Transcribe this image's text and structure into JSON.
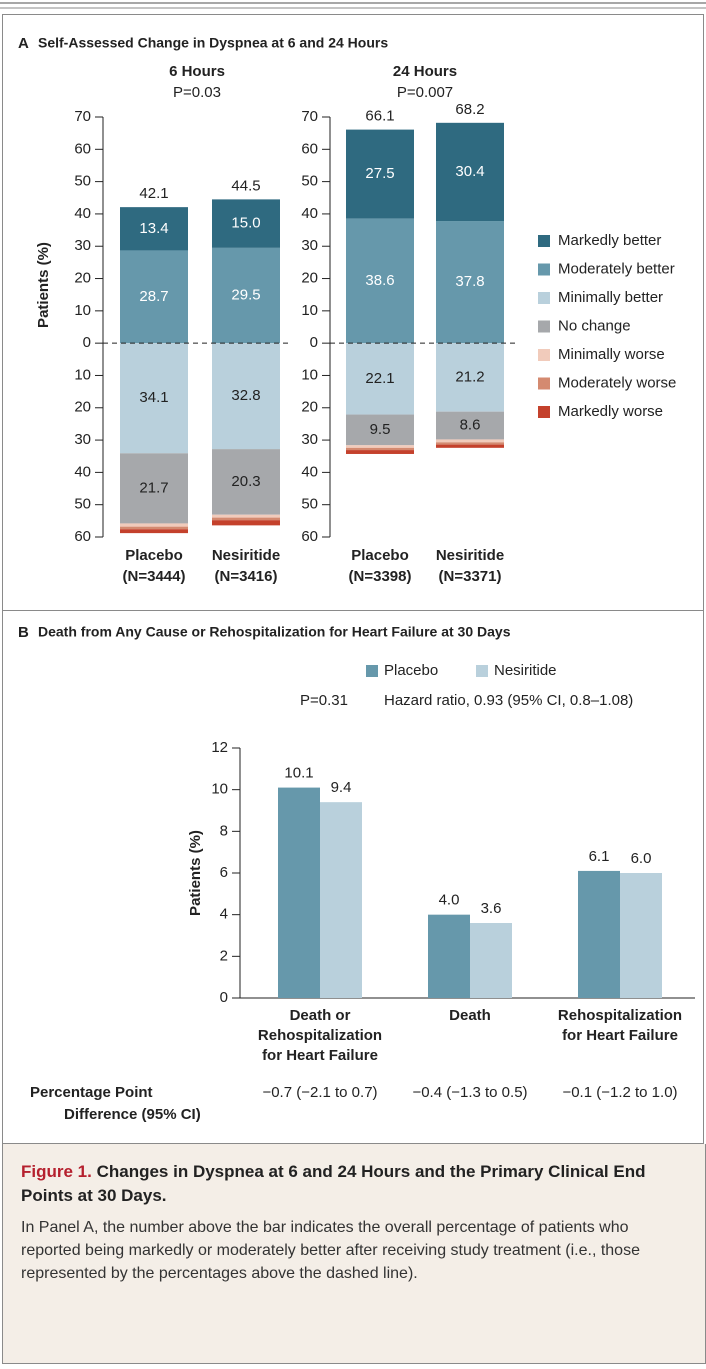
{
  "panels": [
    {
      "letter": "A",
      "title": "Self-Assessed Change in Dyspnea at 6 and 24 Hours"
    },
    {
      "letter": "B",
      "title": "Death from Any Cause or Rehospitalization for Heart Failure at 30 Days"
    }
  ],
  "chart_data": [
    {
      "type": "bar",
      "stacked": true,
      "title": "6 Hours",
      "subtitle": "P=0.03",
      "ylabel": "Patients (%)",
      "categories": [
        "Placebo",
        "Nesiritide"
      ],
      "category_sublabels": [
        "(N=3444)",
        "(N=3416)"
      ],
      "totals": [
        42.1,
        44.5
      ],
      "ylim": [
        -60,
        70
      ],
      "yticks": [
        {
          "value": -60,
          "label": "60"
        },
        {
          "value": -50,
          "label": "50"
        },
        {
          "value": -40,
          "label": "40"
        },
        {
          "value": -30,
          "label": "30"
        },
        {
          "value": -20,
          "label": "20"
        },
        {
          "value": -10,
          "label": "10"
        },
        0,
        10,
        20,
        30,
        40,
        50,
        60,
        70
      ],
      "series": [
        {
          "color": "#2f6a80",
          "values": [
            13.4,
            15.0
          ],
          "value_labels": [
            "13.4",
            "15.0"
          ]
        },
        {
          "color": "#6698ab",
          "values": [
            28.7,
            29.5
          ],
          "value_labels": [
            "28.7",
            "29.5"
          ]
        },
        {
          "color": "#b9d0dc",
          "values": [
            -34.1,
            -32.8
          ],
          "value_labels": [
            "34.1",
            "32.8"
          ]
        },
        {
          "color": "#a6a8ab",
          "values": [
            -21.7,
            -20.3
          ],
          "value_labels": [
            "21.7",
            "20.3"
          ]
        },
        {
          "color": "#f1cbbb",
          "values": [
            -1.0,
            -0.9
          ]
        },
        {
          "color": "#d48a70",
          "values": [
            -0.8,
            -0.8
          ]
        },
        {
          "color": "#c4412c",
          "values": [
            -1.2,
            -1.6
          ]
        }
      ]
    },
    {
      "type": "bar",
      "stacked": true,
      "title": "24 Hours",
      "subtitle": "P=0.007",
      "categories": [
        "Placebo",
        "Nesiritide"
      ],
      "category_sublabels": [
        "(N=3398)",
        "(N=3371)"
      ],
      "totals": [
        66.1,
        68.2
      ],
      "ylim": [
        -60,
        70
      ],
      "yticks": [
        {
          "value": -60,
          "label": "60"
        },
        {
          "value": -50,
          "label": "50"
        },
        {
          "value": -40,
          "label": "40"
        },
        {
          "value": -30,
          "label": "30"
        },
        {
          "value": -20,
          "label": "20"
        },
        {
          "value": -10,
          "label": "10"
        },
        0,
        10,
        20,
        30,
        40,
        50,
        60,
        70
      ],
      "series": [
        {
          "name": "Markedly better",
          "color": "#2f6a80",
          "values": [
            27.5,
            30.4
          ],
          "value_labels": [
            "27.5",
            "30.4"
          ]
        },
        {
          "name": "Moderately better",
          "color": "#6698ab",
          "values": [
            38.6,
            37.8
          ],
          "value_labels": [
            "38.6",
            "37.8"
          ]
        },
        {
          "name": "Minimally better",
          "color": "#b9d0dc",
          "values": [
            -22.1,
            -21.2
          ],
          "value_labels": [
            "22.1",
            "21.2"
          ]
        },
        {
          "name": "No change",
          "color": "#a6a8ab",
          "values": [
            -9.5,
            -8.6
          ],
          "value_labels": [
            "9.5",
            "8.6"
          ]
        },
        {
          "name": "Minimally worse",
          "color": "#f1cbbb",
          "values": [
            -0.8,
            -0.9
          ]
        },
        {
          "name": "Moderately worse",
          "color": "#d48a70",
          "values": [
            -0.7,
            -0.7
          ]
        },
        {
          "name": "Markedly worse",
          "color": "#c4412c",
          "values": [
            -1.2,
            -1.0
          ]
        }
      ]
    },
    {
      "type": "bar",
      "ylabel": "Patients (%)",
      "annotations": [
        "P=0.31",
        "Hazard ratio, 0.93 (95% CI, 0.8–1.08)"
      ],
      "categories": [
        [
          "Death or",
          "Rehospitalization",
          "for Heart Failure"
        ],
        [
          "Death"
        ],
        [
          "Rehospitalization",
          "for Heart Failure"
        ]
      ],
      "ylim": [
        0,
        12
      ],
      "yticks": [
        0,
        2,
        4,
        6,
        8,
        10,
        12
      ],
      "series": [
        {
          "name": "Placebo",
          "color": "#6698ab",
          "values": [
            10.1,
            4.0,
            6.1
          ],
          "value_labels": [
            "10.1",
            "4.0",
            "6.1"
          ]
        },
        {
          "name": "Nesiritide",
          "color": "#b9d0dc",
          "values": [
            9.4,
            3.6,
            6.0
          ],
          "value_labels": [
            "9.4",
            "3.6",
            "6.0"
          ]
        }
      ],
      "difference_label": [
        "Percentage Point",
        "Difference (95% CI)"
      ],
      "differences": [
        "−0.7 (−2.1 to 0.7)",
        "−0.4 (−1.3 to 0.5)",
        "−0.1 (−1.2 to 1.0)"
      ]
    }
  ],
  "caption": {
    "label": "Figure 1.",
    "title": "Changes in Dyspnea at 6 and 24 Hours and the Primary Clinical End Points at 30 Days.",
    "text": "In Panel A, the number above the bar indicates the overall percentage of patients who reported being markedly or moderately better after receiving study treatment (i.e., those represented by the percentages above the dashed line)."
  }
}
